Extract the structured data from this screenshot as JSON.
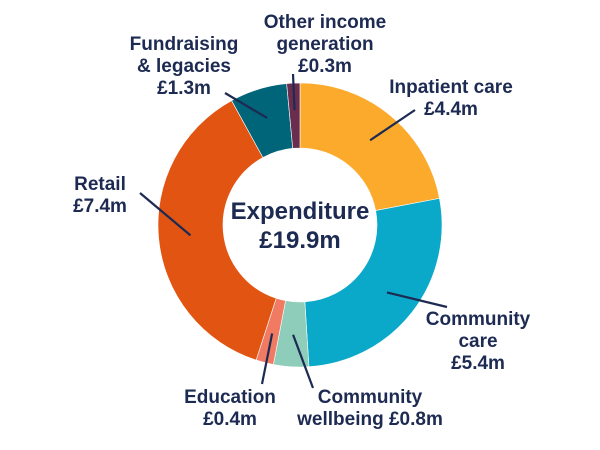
{
  "chart_data": {
    "type": "pie",
    "title": "Expenditure",
    "total": "£19.9m",
    "unit": "£m",
    "slices": [
      {
        "name": "Inpatient care",
        "value": 4.4,
        "value_label": "£4.4m",
        "color": "#fbaa2b"
      },
      {
        "name": "Community care",
        "value": 5.4,
        "value_label": "£5.4m",
        "color": "#0aa8c9"
      },
      {
        "name": "Community wellbeing",
        "value": 0.8,
        "value_label": "£0.8m",
        "color": "#8fcdbb"
      },
      {
        "name": "Education",
        "value": 0.4,
        "value_label": "£0.4m",
        "color": "#f07b62"
      },
      {
        "name": "Retail",
        "value": 7.4,
        "value_label": "£7.4m",
        "color": "#e25412"
      },
      {
        "name": "Fundraising & legacies",
        "value": 1.3,
        "value_label": "£1.3m",
        "color": "#01657a"
      },
      {
        "name": "Other income generation",
        "value": 0.3,
        "value_label": "£0.3m",
        "color": "#6b2d4e"
      }
    ]
  }
}
